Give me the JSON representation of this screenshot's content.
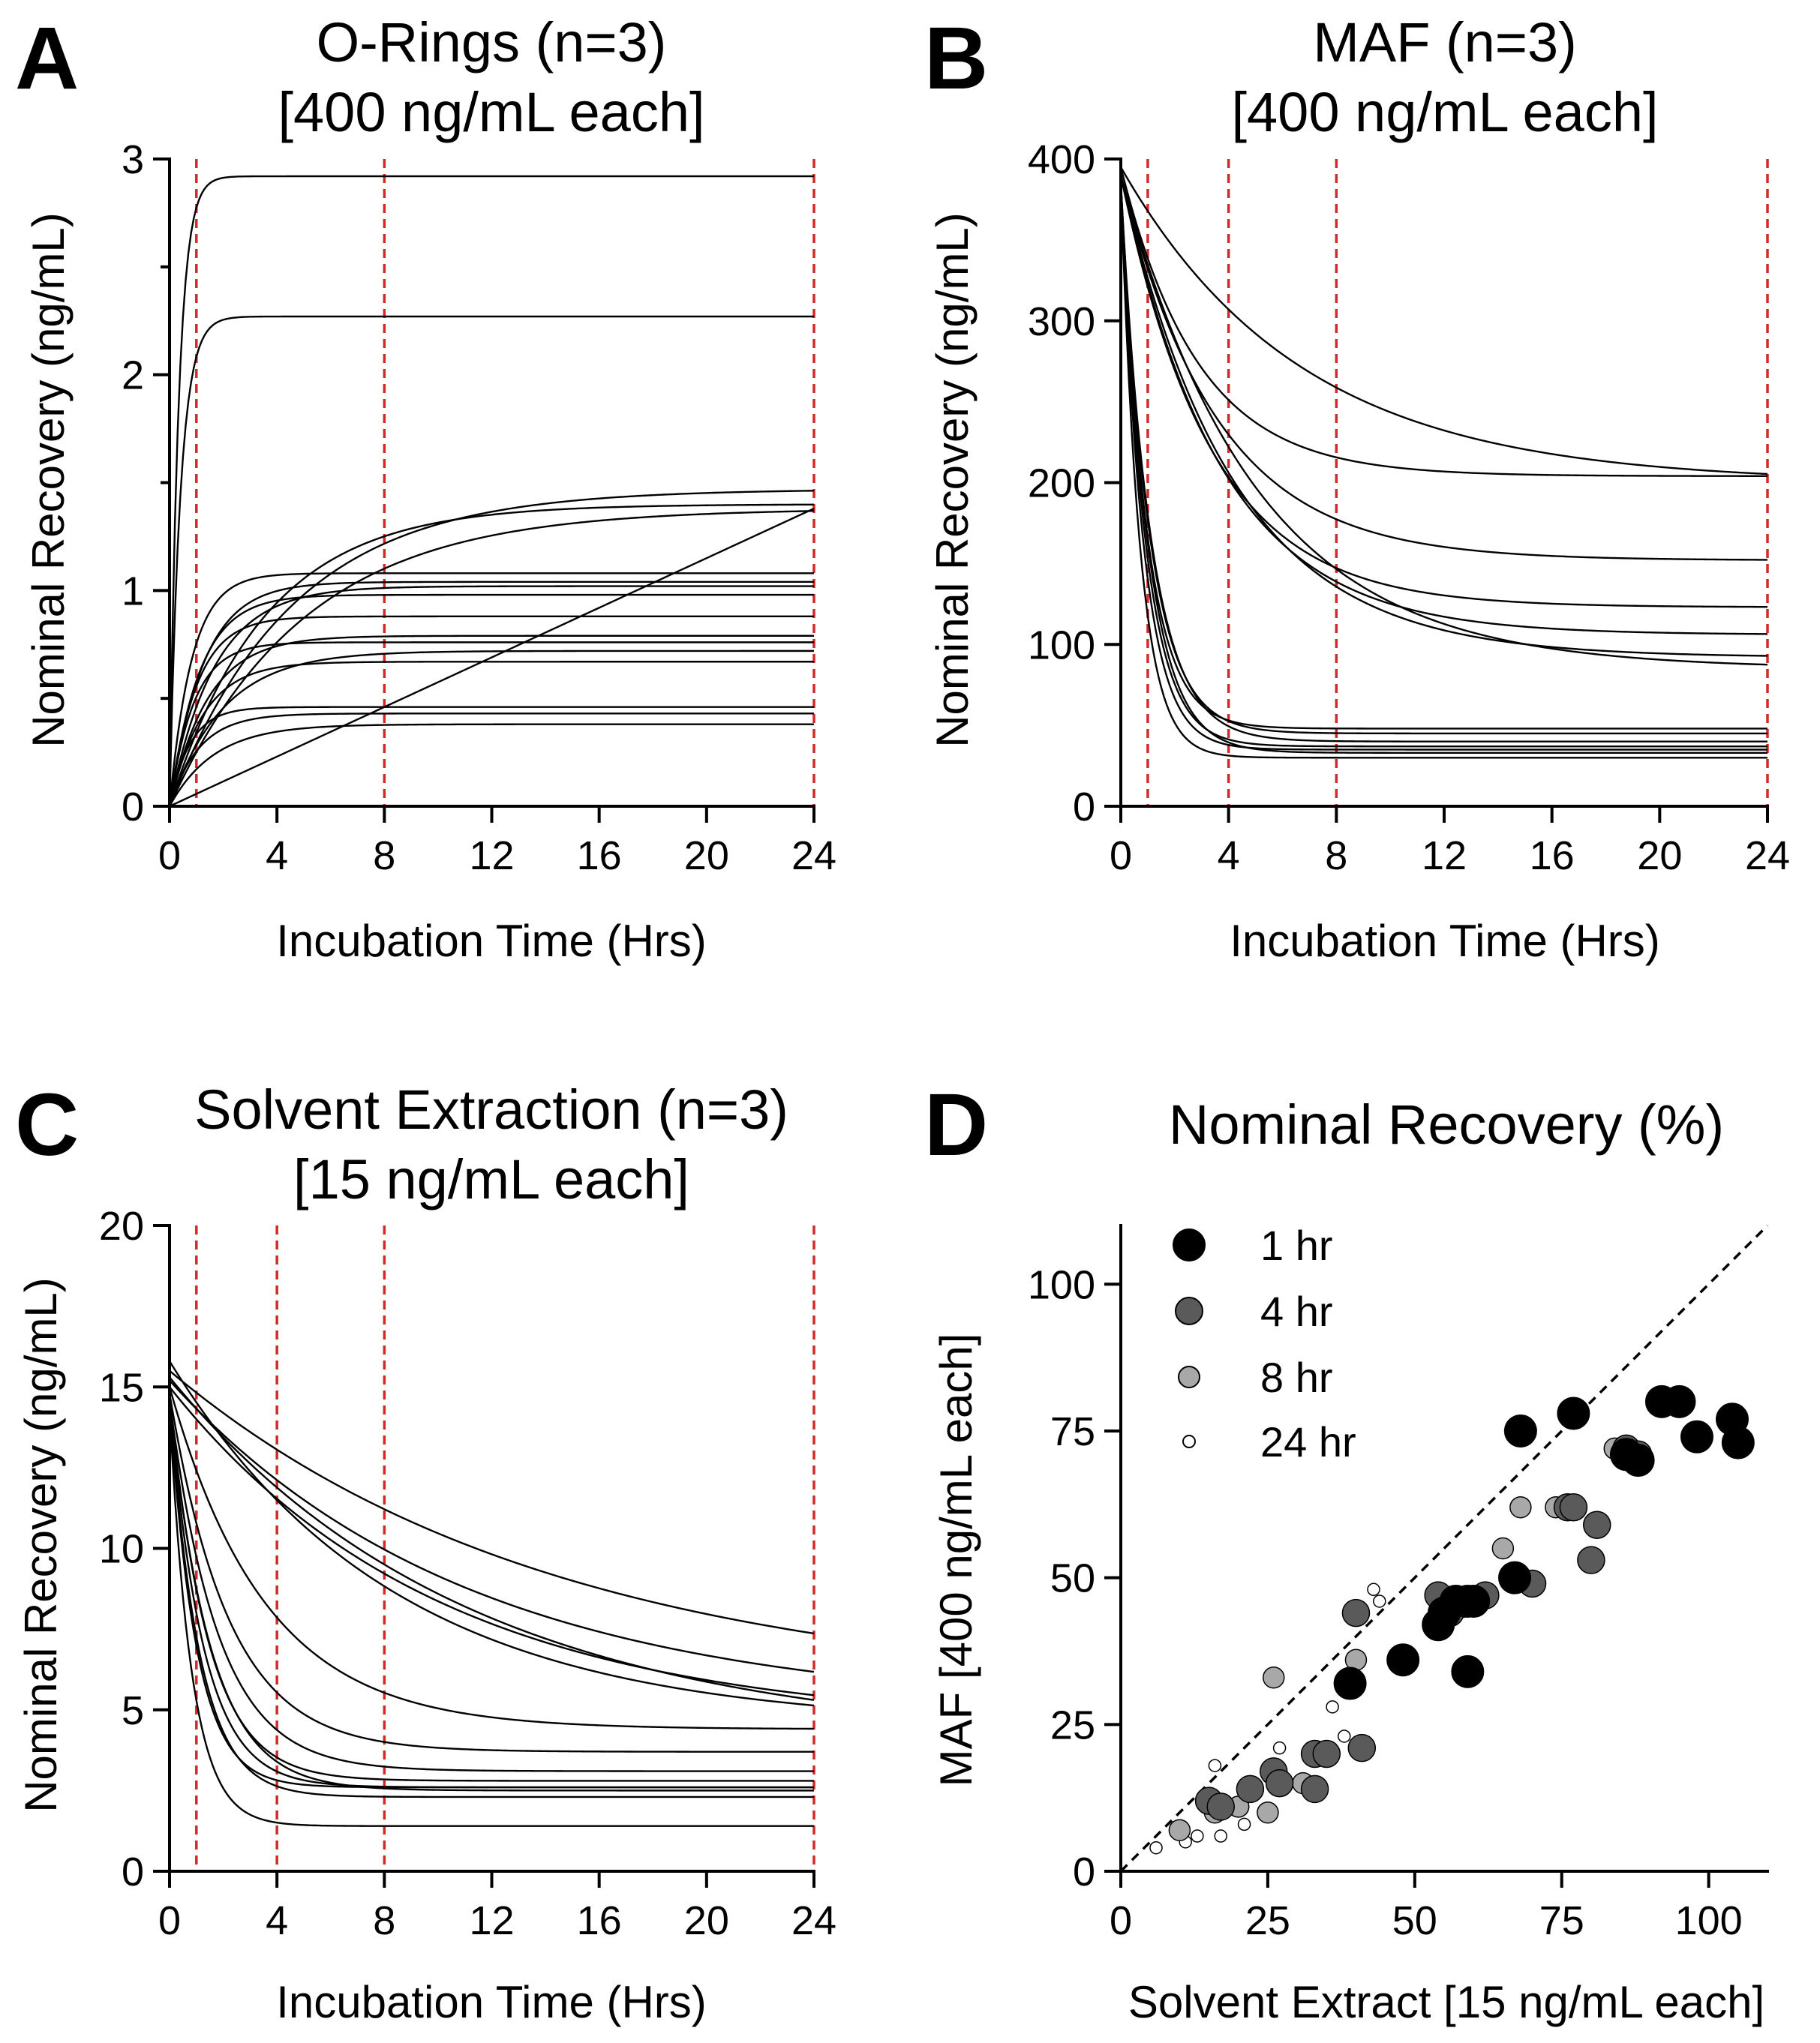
{
  "chart_data": [
    {
      "panel": "A",
      "type": "line",
      "title": "O-Rings (n=3)",
      "subtitle": "[400 ng/mL each]",
      "xlabel": "Incubation Time (Hrs)",
      "ylabel": "Nominal Recovery (ng/mL)",
      "xlim": [
        0,
        24
      ],
      "ylim": [
        0,
        3
      ],
      "xticks": [
        "0",
        "4",
        "8",
        "12",
        "16",
        "20",
        "24"
      ],
      "yticks": [
        "0",
        "1",
        "2",
        "3"
      ],
      "ref_lines_x": [
        1,
        8,
        24
      ],
      "series": [
        {
          "model": "exp",
          "y0": 0,
          "plateau": 2.92,
          "k": 3.0
        },
        {
          "model": "exp",
          "y0": 0,
          "plateau": 2.27,
          "k": 2.5
        },
        {
          "model": "exp",
          "y0": 0,
          "plateau": 1.47,
          "k": 0.22
        },
        {
          "model": "exp",
          "y0": 0,
          "plateau": 1.4,
          "k": 0.28
        },
        {
          "model": "exp",
          "y0": 0,
          "plateau": 1.38,
          "k": 0.2
        },
        {
          "model": "exp",
          "y0": 0,
          "plateau": 1.08,
          "k": 1.2
        },
        {
          "model": "exp",
          "y0": 0,
          "plateau": 1.04,
          "k": 0.8
        },
        {
          "model": "exp",
          "y0": 0,
          "plateau": 1.02,
          "k": 0.6
        },
        {
          "model": "exp",
          "y0": 0,
          "plateau": 0.98,
          "k": 0.9
        },
        {
          "model": "exp",
          "y0": 0,
          "plateau": 0.88,
          "k": 1.0
        },
        {
          "model": "exp",
          "y0": 0,
          "plateau": 0.79,
          "k": 0.7
        },
        {
          "model": "exp",
          "y0": 0,
          "plateau": 0.76,
          "k": 1.1
        },
        {
          "model": "exp",
          "y0": 0,
          "plateau": 0.72,
          "k": 0.5
        },
        {
          "model": "exp",
          "y0": 0,
          "plateau": 0.67,
          "k": 0.8
        },
        {
          "model": "exp",
          "y0": 0,
          "plateau": 0.46,
          "k": 1.3
        },
        {
          "model": "exp",
          "y0": 0,
          "plateau": 0.43,
          "k": 0.9
        },
        {
          "model": "exp",
          "y0": 0,
          "plateau": 0.38,
          "k": 0.6
        },
        {
          "model": "linear",
          "y0": 0,
          "y24": 1.38
        }
      ]
    },
    {
      "panel": "B",
      "type": "line",
      "title": "MAF (n=3)",
      "subtitle": "[400 ng/mL each]",
      "xlabel": "Incubation Time (Hrs)",
      "ylabel": "Nominal Recovery (ng/mL)",
      "xlim": [
        0,
        24
      ],
      "ylim": [
        0,
        400
      ],
      "xticks": [
        "0",
        "4",
        "8",
        "12",
        "16",
        "20",
        "24"
      ],
      "yticks": [
        "0",
        "100",
        "200",
        "300",
        "400"
      ],
      "ref_lines_x": [
        1,
        4,
        8,
        24
      ],
      "series": [
        {
          "model": "exp",
          "y0": 395,
          "plateau": 200,
          "k": 0.15
        },
        {
          "model": "exp",
          "y0": 395,
          "plateau": 204,
          "k": 0.35
        },
        {
          "model": "exp",
          "y0": 390,
          "plateau": 152,
          "k": 0.28
        },
        {
          "model": "exp",
          "y0": 390,
          "plateau": 123,
          "k": 0.3
        },
        {
          "model": "exp",
          "y0": 390,
          "plateau": 106,
          "k": 0.27
        },
        {
          "model": "exp",
          "y0": 390,
          "plateau": 92,
          "k": 0.24
        },
        {
          "model": "exp",
          "y0": 390,
          "plateau": 85,
          "k": 0.2
        },
        {
          "model": "exp",
          "y0": 385,
          "plateau": 48,
          "k": 1.05
        },
        {
          "model": "exp",
          "y0": 385,
          "plateau": 45,
          "k": 0.95
        },
        {
          "model": "exp",
          "y0": 385,
          "plateau": 40,
          "k": 0.9
        },
        {
          "model": "exp",
          "y0": 385,
          "plateau": 37,
          "k": 1.1
        },
        {
          "model": "exp",
          "y0": 385,
          "plateau": 35,
          "k": 1.2
        },
        {
          "model": "exp",
          "y0": 385,
          "plateau": 33,
          "k": 1.0
        },
        {
          "model": "exp",
          "y0": 385,
          "plateau": 30,
          "k": 1.4
        }
      ]
    },
    {
      "panel": "C",
      "type": "line",
      "title": "Solvent Extraction (n=3)",
      "subtitle": "[15 ng/mL each]",
      "xlabel": "Incubation Time (Hrs)",
      "ylabel": "Nominal Recovery (ng/mL)",
      "xlim": [
        0,
        24
      ],
      "ylim": [
        0,
        20
      ],
      "xticks": [
        "0",
        "4",
        "8",
        "12",
        "16",
        "20",
        "24"
      ],
      "yticks": [
        "0",
        "5",
        "10",
        "15",
        "20"
      ],
      "ref_lines_x": [
        1,
        4,
        8,
        24
      ],
      "series": [
        {
          "model": "exp",
          "y0": 15.5,
          "plateau": 5.5,
          "k": 0.07
        },
        {
          "model": "exp",
          "y0": 15.2,
          "plateau": 5.0,
          "k": 0.09
        },
        {
          "model": "exp",
          "y0": 15.0,
          "plateau": 4.5,
          "k": 0.1
        },
        {
          "model": "exp",
          "y0": 15.3,
          "plateau": 4.0,
          "k": 0.09
        },
        {
          "model": "exp",
          "y0": 15.8,
          "plateau": 4.5,
          "k": 0.12
        },
        {
          "model": "exp",
          "y0": 15.0,
          "plateau": 4.4,
          "k": 0.28
        },
        {
          "model": "exp",
          "y0": 14.8,
          "plateau": 3.7,
          "k": 0.45
        },
        {
          "model": "exp",
          "y0": 14.6,
          "plateau": 3.1,
          "k": 0.55
        },
        {
          "model": "exp",
          "y0": 14.7,
          "plateau": 2.8,
          "k": 0.7
        },
        {
          "model": "exp",
          "y0": 14.6,
          "plateau": 2.6,
          "k": 0.8
        },
        {
          "model": "exp",
          "y0": 14.5,
          "plateau": 2.5,
          "k": 0.65
        },
        {
          "model": "exp",
          "y0": 14.5,
          "plateau": 2.3,
          "k": 0.9
        },
        {
          "model": "exp",
          "y0": 14.5,
          "plateau": 2.6,
          "k": 1.0
        },
        {
          "model": "exp",
          "y0": 14.3,
          "plateau": 1.4,
          "k": 1.2
        }
      ]
    },
    {
      "panel": "D",
      "type": "scatter",
      "title": "Nominal Recovery (%)",
      "xlabel": "Solvent Extract [15 ng/mL each]",
      "ylabel": "MAF [400 ng/mL each]",
      "xlim": [
        0,
        110
      ],
      "ylim": [
        0,
        110
      ],
      "xticks": [
        "0",
        "25",
        "50",
        "75",
        "100"
      ],
      "yticks": [
        "0",
        "25",
        "50",
        "75",
        "100"
      ],
      "identity_line": true,
      "legend_position": "top-left",
      "series": [
        {
          "name": "1 hr",
          "color": "#000000",
          "size": "large",
          "points": [
            [
              39,
              32
            ],
            [
              48,
              36
            ],
            [
              54,
              42
            ],
            [
              55,
              44
            ],
            [
              57,
              46
            ],
            [
              59,
              46
            ],
            [
              60,
              46
            ],
            [
              59,
              34
            ],
            [
              67,
              50
            ],
            [
              68,
              75
            ],
            [
              77,
              78
            ],
            [
              86,
              71
            ],
            [
              88,
              70
            ],
            [
              92,
              80
            ],
            [
              95,
              80
            ],
            [
              98,
              74
            ],
            [
              104,
              77
            ],
            [
              105,
              73
            ]
          ]
        },
        {
          "name": "4 hr",
          "color": "#5a5a5a",
          "size": "medium",
          "points": [
            [
              15,
              12
            ],
            [
              17,
              11
            ],
            [
              22,
              14
            ],
            [
              26,
              17
            ],
            [
              27,
              15
            ],
            [
              33,
              14
            ],
            [
              33,
              20
            ],
            [
              35,
              20
            ],
            [
              40,
              44
            ],
            [
              41,
              21
            ],
            [
              54,
              47
            ],
            [
              56,
              44
            ],
            [
              62,
              47
            ],
            [
              70,
              49
            ],
            [
              76,
              62
            ],
            [
              77,
              62
            ],
            [
              80,
              53
            ],
            [
              81,
              59
            ],
            [
              86,
              72
            ],
            [
              88,
              71
            ]
          ]
        },
        {
          "name": "8 hr",
          "color": "#a8a8a8",
          "size": "small",
          "points": [
            [
              10,
              7
            ],
            [
              16,
              10
            ],
            [
              20,
              11
            ],
            [
              25,
              10
            ],
            [
              26,
              33
            ],
            [
              31,
              15
            ],
            [
              40,
              36
            ],
            [
              55,
              46
            ],
            [
              65,
              55
            ],
            [
              68,
              62
            ],
            [
              74,
              62
            ],
            [
              84,
              72
            ],
            [
              58,
              45
            ]
          ]
        },
        {
          "name": "24 hr",
          "color": "#ffffff",
          "size": "tiny",
          "points": [
            [
              6,
              4
            ],
            [
              11,
              5
            ],
            [
              13,
              6
            ],
            [
              16,
              18
            ],
            [
              17,
              6
            ],
            [
              21,
              8
            ],
            [
              27,
              21
            ],
            [
              36,
              28
            ],
            [
              38,
              23
            ],
            [
              43,
              48
            ],
            [
              44,
              46
            ],
            [
              54,
              48
            ]
          ]
        }
      ]
    }
  ]
}
